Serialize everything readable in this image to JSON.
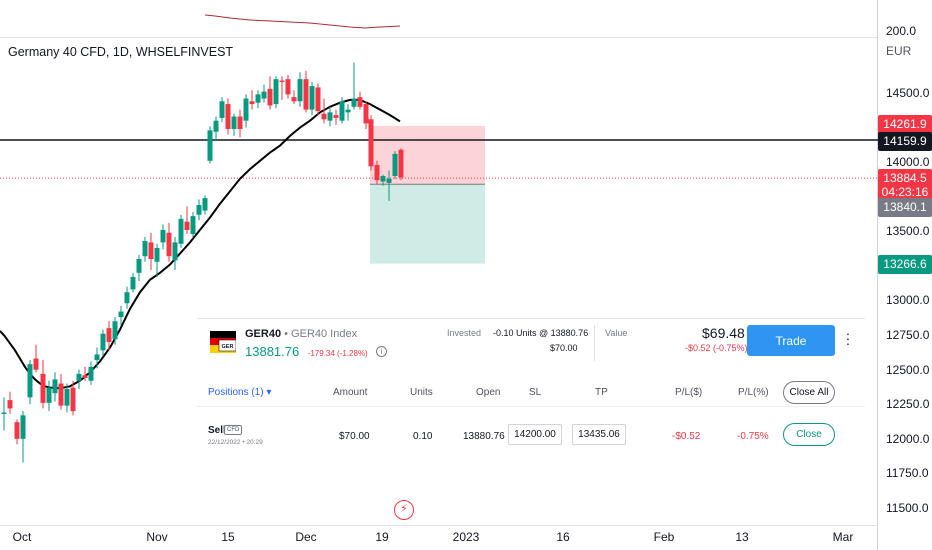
{
  "chart_data": {
    "type": "candlestick",
    "title": "Germany 40 CFD, 1D, WHSELFINVEST",
    "currency": "EUR",
    "price_ticks": [
      "200.0",
      "14500.0",
      "14250.0",
      "14000.0",
      "13750.0",
      "13500.0",
      "13250.0",
      "13000.0",
      "12750.0",
      "12500.0",
      "12250.0",
      "12000.0",
      "11750.0",
      "11500.0"
    ],
    "time_ticks": [
      "Oct",
      "Nov",
      "15",
      "Dec",
      "19",
      "2023",
      "16",
      "Feb",
      "13",
      "Mar"
    ],
    "ylim": [
      11420,
      14770
    ],
    "indicator_line_name": "Moving average",
    "indicator_ma": [
      [
        0,
        12780
      ],
      [
        5,
        12740
      ],
      [
        10,
        12690
      ],
      [
        15,
        12640
      ],
      [
        20,
        12580
      ],
      [
        25,
        12520
      ],
      [
        30,
        12470
      ],
      [
        35,
        12430
      ],
      [
        40,
        12400
      ],
      [
        45,
        12380
      ],
      [
        50,
        12370
      ],
      [
        60,
        12365
      ],
      [
        70,
        12380
      ],
      [
        80,
        12420
      ],
      [
        90,
        12480
      ],
      [
        100,
        12560
      ],
      [
        110,
        12660
      ],
      [
        120,
        12790
      ],
      [
        130,
        12940
      ],
      [
        140,
        13060
      ],
      [
        150,
        13150
      ],
      [
        160,
        13200
      ],
      [
        170,
        13260
      ],
      [
        180,
        13340
      ],
      [
        190,
        13420
      ],
      [
        200,
        13510
      ],
      [
        210,
        13600
      ],
      [
        220,
        13700
      ],
      [
        230,
        13790
      ],
      [
        240,
        13880
      ],
      [
        250,
        13950
      ],
      [
        260,
        14010
      ],
      [
        270,
        14070
      ],
      [
        280,
        14120
      ],
      [
        290,
        14190
      ],
      [
        300,
        14250
      ],
      [
        310,
        14300
      ],
      [
        320,
        14360
      ],
      [
        330,
        14400
      ],
      [
        340,
        14430
      ],
      [
        350,
        14450
      ],
      [
        360,
        14450
      ],
      [
        370,
        14420
      ],
      [
        380,
        14380
      ],
      [
        390,
        14340
      ],
      [
        400,
        14295
      ]
    ],
    "candles": [
      [
        4,
        12180,
        12300,
        12060,
        12190
      ],
      [
        10,
        12280,
        12340,
        12180,
        12220
      ],
      [
        17,
        12120,
        12140,
        11960,
        12000
      ],
      [
        23,
        12000,
        12200,
        11830,
        12170
      ],
      [
        30,
        12300,
        12570,
        12250,
        12540
      ],
      [
        36,
        12580,
        12680,
        12480,
        12500
      ],
      [
        43,
        12470,
        12570,
        12220,
        12260
      ],
      [
        49,
        12260,
        12420,
        12200,
        12370
      ],
      [
        55,
        12330,
        12480,
        12270,
        12430
      ],
      [
        61,
        12400,
        12470,
        12210,
        12240
      ],
      [
        67,
        12240,
        12400,
        12190,
        12360
      ],
      [
        73,
        12370,
        12420,
        12170,
        12200
      ],
      [
        79,
        12420,
        12500,
        12360,
        12470
      ],
      [
        85,
        12460,
        12520,
        12420,
        12440
      ],
      [
        91,
        12420,
        12560,
        12390,
        12520
      ],
      [
        97,
        12570,
        12660,
        12510,
        12610
      ],
      [
        103,
        12640,
        12790,
        12600,
        12760
      ],
      [
        109,
        12800,
        12850,
        12640,
        12700
      ],
      [
        115,
        12720,
        12880,
        12680,
        12850
      ],
      [
        121,
        12880,
        12960,
        12820,
        12920
      ],
      [
        127,
        12980,
        13100,
        12940,
        13060
      ],
      [
        133,
        13080,
        13200,
        13060,
        13170
      ],
      [
        139,
        13200,
        13330,
        13140,
        13300
      ],
      [
        145,
        13320,
        13460,
        13280,
        13430
      ],
      [
        151,
        13420,
        13490,
        13220,
        13300
      ],
      [
        157,
        13280,
        13410,
        13170,
        13380
      ],
      [
        163,
        13420,
        13550,
        13370,
        13510
      ],
      [
        169,
        13490,
        13560,
        13280,
        13320
      ],
      [
        175,
        13290,
        13460,
        13220,
        13420
      ],
      [
        181,
        13410,
        13620,
        13380,
        13590
      ],
      [
        187,
        13570,
        13680,
        13480,
        13510
      ],
      [
        193,
        13480,
        13640,
        13460,
        13610
      ],
      [
        199,
        13620,
        13730,
        13580,
        13690
      ],
      [
        205,
        13650,
        13760,
        13620,
        13740
      ],
      [
        210,
        14010,
        14260,
        13990,
        14230
      ],
      [
        216,
        14220,
        14330,
        14160,
        14300
      ],
      [
        222,
        14320,
        14470,
        14290,
        14440
      ],
      [
        228,
        14420,
        14460,
        14200,
        14240
      ],
      [
        234,
        14240,
        14350,
        14190,
        14330
      ],
      [
        240,
        14330,
        14380,
        14180,
        14240
      ],
      [
        246,
        14300,
        14490,
        14250,
        14460
      ],
      [
        252,
        14440,
        14520,
        14380,
        14420
      ],
      [
        258,
        14430,
        14520,
        14390,
        14490
      ],
      [
        264,
        14460,
        14560,
        14430,
        14510
      ],
      [
        270,
        14530,
        14620,
        14380,
        14410
      ],
      [
        276,
        14420,
        14620,
        14390,
        14600
      ],
      [
        282,
        14590,
        14620,
        14450,
        14580
      ],
      [
        288,
        14600,
        14630,
        14460,
        14490
      ],
      [
        294,
        14470,
        14520,
        14420,
        14440
      ],
      [
        300,
        14440,
        14650,
        14400,
        14600
      ],
      [
        306,
        14600,
        14660,
        14360,
        14380
      ],
      [
        312,
        14380,
        14580,
        14340,
        14550
      ],
      [
        318,
        14540,
        14570,
        14340,
        14370
      ],
      [
        324,
        14350,
        14460,
        14280,
        14310
      ],
      [
        330,
        14300,
        14400,
        14260,
        14360
      ],
      [
        336,
        14340,
        14380,
        14270,
        14320
      ],
      [
        342,
        14300,
        14470,
        14280,
        14440
      ],
      [
        348,
        14360,
        14420,
        14300,
        14380
      ],
      [
        354,
        14400,
        14720,
        14380,
        14460
      ],
      [
        360,
        14470,
        14510,
        14380,
        14400
      ],
      [
        366,
        14420,
        14440,
        14240,
        14280
      ],
      [
        371,
        14310,
        14340,
        13940,
        13970
      ],
      [
        377,
        13980,
        14010,
        13840,
        13870
      ],
      [
        383,
        13860,
        13910,
        13830,
        13900
      ],
      [
        389,
        13850,
        13940,
        13720,
        13880
      ],
      [
        395,
        13900,
        14080,
        13880,
        14060
      ],
      [
        401,
        14090,
        14100,
        13870,
        13890
      ]
    ],
    "horizontal_lines": [
      {
        "price": 14159.9,
        "label": "14159.9"
      },
      {
        "price": 13884.5,
        "label": "13884.5",
        "countdown": "04:23:16"
      }
    ],
    "position_box": {
      "entry": 13840.1,
      "stop": 14261.9,
      "target": 13266.6
    },
    "price_tags": [
      "14261.9",
      "14159.9",
      "13884.5",
      "04:23:16",
      "13840.1",
      "13266.6"
    ]
  },
  "panel": {
    "symbol": "GER40",
    "symbol_desc": "• GER40 Index",
    "last_price": "13881.76",
    "change": "-179.34 (-1.28%)",
    "invested_label": "Invested",
    "invested_units": "-0.10 Units @ 13880.76",
    "invested_amount": "$70.00",
    "value_label": "Value",
    "value_amount": "$69.48",
    "value_change": "-$0.52 (-0.75%)",
    "trade_label": "Trade",
    "positions_tab": "Positions (1) ▾",
    "columns": [
      "Amount",
      "Units",
      "Open",
      "SL",
      "TP",
      "P/L($)",
      "P/L(%)"
    ],
    "close_all_label": "Close All",
    "row": {
      "side": "Sell",
      "badge": "CFD",
      "timestamp": "22/12/2022 • 20:29",
      "amount": "$70.00",
      "units": "0.10",
      "open": "13880.76",
      "sl": "14200.00",
      "tp": "13435.06",
      "pl_usd": "-$0.52",
      "pl_pct": "-0.75%",
      "close_label": "Close"
    }
  },
  "colors": {
    "up": "#089981",
    "down": "#f23645",
    "ma": "#000000",
    "accent": "#2e96f2"
  }
}
